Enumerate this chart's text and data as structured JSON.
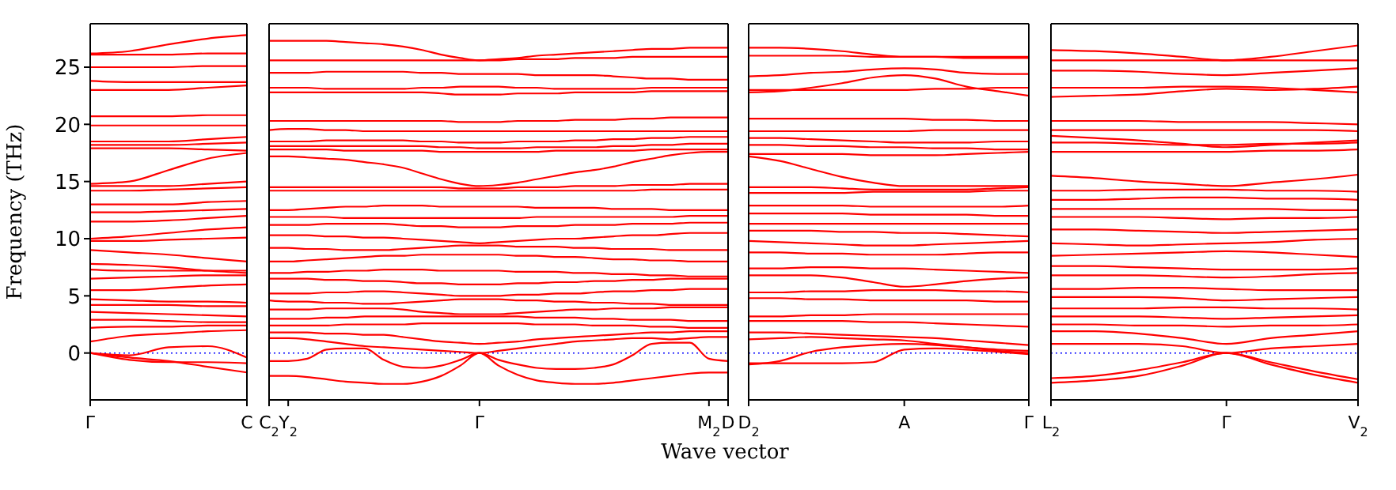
{
  "chart_data": [
    {
      "type": "line",
      "ylabel": "Frequency (THz)",
      "categories": [
        "Γ",
        null,
        null,
        null,
        "C"
      ],
      "ylim": [
        -4.1,
        28.8
      ],
      "yticks": [
        0,
        5,
        10,
        15,
        20,
        25
      ],
      "ref_lines": [
        {
          "axis": "y",
          "value": 0,
          "label": null,
          "color": "#0000ff",
          "line_style": "dotted"
        }
      ],
      "series": [
        {
          "color": "#ff0000",
          "values": [
            26.2,
            26.4,
            27.0,
            27.5,
            27.8
          ]
        },
        {
          "color": "#ff0000",
          "values": [
            26.1,
            26.1,
            26.1,
            26.2,
            26.2
          ]
        },
        {
          "color": "#ff0000",
          "values": [
            25.0,
            25.0,
            25.0,
            25.1,
            25.1
          ]
        },
        {
          "color": "#ff0000",
          "values": [
            23.8,
            23.7,
            23.7,
            23.7,
            23.7
          ]
        },
        {
          "color": "#ff0000",
          "values": [
            23.0,
            23.0,
            23.0,
            23.2,
            23.4
          ]
        },
        {
          "color": "#ff0000",
          "values": [
            20.7,
            20.7,
            20.7,
            20.8,
            20.8
          ]
        },
        {
          "color": "#ff0000",
          "values": [
            19.9,
            19.9,
            19.9,
            19.9,
            19.9
          ]
        },
        {
          "color": "#ff0000",
          "values": [
            18.5,
            18.5,
            18.5,
            18.7,
            18.9
          ]
        },
        {
          "color": "#ff0000",
          "values": [
            18.2,
            18.2,
            18.2,
            18.3,
            18.4
          ]
        },
        {
          "color": "#ff0000",
          "values": [
            17.9,
            17.9,
            17.9,
            17.8,
            17.7
          ]
        },
        {
          "color": "#ff0000",
          "values": [
            14.8,
            15.0,
            16.0,
            17.0,
            17.5
          ]
        },
        {
          "color": "#ff0000",
          "values": [
            14.6,
            14.6,
            14.6,
            14.8,
            15.0
          ]
        },
        {
          "color": "#ff0000",
          "values": [
            14.2,
            14.2,
            14.3,
            14.4,
            14.5
          ]
        },
        {
          "color": "#ff0000",
          "values": [
            13.0,
            13.0,
            13.0,
            13.2,
            13.3
          ]
        },
        {
          "color": "#ff0000",
          "values": [
            12.3,
            12.3,
            12.4,
            12.5,
            12.6
          ]
        },
        {
          "color": "#ff0000",
          "values": [
            11.5,
            11.5,
            11.6,
            11.8,
            12.0
          ]
        },
        {
          "color": "#ff0000",
          "values": [
            10.0,
            10.2,
            10.5,
            10.8,
            11.0
          ]
        },
        {
          "color": "#ff0000",
          "values": [
            9.8,
            9.8,
            9.9,
            10.0,
            10.1
          ]
        },
        {
          "color": "#ff0000",
          "values": [
            9.0,
            8.8,
            8.6,
            8.3,
            8.0
          ]
        },
        {
          "color": "#ff0000",
          "values": [
            7.8,
            7.7,
            7.5,
            7.2,
            7.0
          ]
        },
        {
          "color": "#ff0000",
          "values": [
            7.3,
            7.2,
            7.2,
            7.2,
            7.2
          ]
        },
        {
          "color": "#ff0000",
          "values": [
            6.5,
            6.6,
            6.7,
            6.8,
            6.8
          ]
        },
        {
          "color": "#ff0000",
          "values": [
            5.5,
            5.5,
            5.7,
            5.9,
            6.0
          ]
        },
        {
          "color": "#ff0000",
          "values": [
            4.7,
            4.6,
            4.5,
            4.5,
            4.4
          ]
        },
        {
          "color": "#ff0000",
          "values": [
            4.2,
            4.2,
            4.2,
            4.1,
            4.1
          ]
        },
        {
          "color": "#ff0000",
          "values": [
            3.6,
            3.5,
            3.4,
            3.3,
            3.2
          ]
        },
        {
          "color": "#ff0000",
          "values": [
            2.9,
            2.9,
            2.8,
            2.7,
            2.7
          ]
        },
        {
          "color": "#ff0000",
          "values": [
            2.2,
            2.3,
            2.3,
            2.4,
            2.4
          ]
        },
        {
          "color": "#ff0000",
          "values": [
            1.0,
            1.5,
            1.7,
            1.9,
            2.0
          ]
        },
        {
          "color": "#ff0000",
          "values": [
            0,
            -0.2,
            0.5,
            0.6,
            -0.4
          ]
        },
        {
          "color": "#ff0000",
          "values": [
            0,
            -0.6,
            -0.8,
            -0.8,
            -0.9
          ]
        },
        {
          "color": "#ff0000",
          "values": [
            0,
            -0.4,
            -0.7,
            -1.2,
            -1.7
          ]
        }
      ]
    },
    {
      "type": "line",
      "xlabel": "Wave vector",
      "tick_labels": "x",
      "categories": [
        "C$_{2}$",
        "Y$_{2}$",
        null,
        null,
        null,
        null,
        null,
        null,
        null,
        null,
        null,
        "Γ",
        null,
        null,
        null,
        null,
        null,
        null,
        null,
        null,
        null,
        null,
        null,
        "M$_{2}$",
        "D"
      ],
      "ylim": [
        -4.1,
        28.8
      ],
      "yticks": [
        0,
        5,
        10,
        15,
        20,
        25
      ],
      "ref_lines": [
        {
          "axis": "y",
          "value": 0,
          "label": null,
          "color": "#0000ff",
          "line_style": "dotted"
        }
      ],
      "series": [
        {
          "color": "#ff0000",
          "values": [
            27.3,
            27.3,
            27.3,
            27.3,
            27.2,
            27.1,
            27.0,
            26.8,
            26.5,
            26.1,
            25.8,
            25.6,
            25.7,
            25.8,
            26.0,
            26.1,
            26.2,
            26.3,
            26.4,
            26.5,
            26.6,
            26.6,
            26.7,
            26.7,
            26.7
          ]
        },
        {
          "color": "#ff0000",
          "values": [
            25.6,
            25.6,
            25.6,
            25.6,
            25.6,
            25.6,
            25.6,
            25.6,
            25.6,
            25.6,
            25.6,
            25.6,
            25.6,
            25.7,
            25.7,
            25.7,
            25.8,
            25.8,
            25.8,
            25.9,
            25.9,
            25.9,
            25.9,
            25.9,
            25.9
          ]
        },
        {
          "color": "#ff0000",
          "values": [
            24.5,
            24.5,
            24.5,
            24.6,
            24.6,
            24.6,
            24.6,
            24.6,
            24.5,
            24.5,
            24.4,
            24.4,
            24.4,
            24.4,
            24.3,
            24.3,
            24.3,
            24.3,
            24.2,
            24.1,
            24.0,
            24.0,
            23.9,
            23.9,
            23.9
          ]
        },
        {
          "color": "#ff0000",
          "values": [
            23.2,
            23.2,
            23.2,
            23.1,
            23.1,
            23.1,
            23.1,
            23.1,
            23.2,
            23.2,
            23.3,
            23.3,
            23.3,
            23.2,
            23.2,
            23.1,
            23.1,
            23.1,
            23.1,
            23.1,
            23.2,
            23.2,
            23.2,
            23.2,
            23.2
          ]
        },
        {
          "color": "#ff0000",
          "values": [
            22.8,
            22.8,
            22.8,
            22.8,
            22.8,
            22.8,
            22.8,
            22.8,
            22.8,
            22.7,
            22.6,
            22.6,
            22.6,
            22.7,
            22.7,
            22.7,
            22.8,
            22.8,
            22.8,
            22.8,
            22.9,
            22.9,
            22.9,
            22.9,
            22.9
          ]
        },
        {
          "color": "#ff0000",
          "values": [
            20.3,
            20.3,
            20.3,
            20.3,
            20.3,
            20.3,
            20.3,
            20.3,
            20.3,
            20.3,
            20.2,
            20.2,
            20.2,
            20.3,
            20.3,
            20.3,
            20.4,
            20.4,
            20.4,
            20.5,
            20.5,
            20.6,
            20.6,
            20.6,
            20.6
          ]
        },
        {
          "color": "#ff0000",
          "values": [
            19.5,
            19.6,
            19.6,
            19.5,
            19.5,
            19.4,
            19.4,
            19.4,
            19.4,
            19.4,
            19.4,
            19.4,
            19.4,
            19.4,
            19.4,
            19.4,
            19.4,
            19.4,
            19.4,
            19.4,
            19.4,
            19.4,
            19.4,
            19.4,
            19.4
          ]
        },
        {
          "color": "#ff0000",
          "values": [
            18.5,
            18.5,
            18.5,
            18.6,
            18.6,
            18.6,
            18.6,
            18.6,
            18.5,
            18.5,
            18.4,
            18.4,
            18.4,
            18.5,
            18.5,
            18.5,
            18.6,
            18.6,
            18.7,
            18.7,
            18.8,
            18.8,
            18.9,
            18.9,
            18.9
          ]
        },
        {
          "color": "#ff0000",
          "values": [
            18.1,
            18.1,
            18.1,
            18.1,
            18.1,
            18.1,
            18.1,
            18.1,
            18.1,
            18.0,
            18.0,
            17.9,
            17.9,
            17.9,
            18.0,
            18.0,
            18.0,
            18.0,
            18.1,
            18.1,
            18.2,
            18.2,
            18.3,
            18.3,
            18.3
          ]
        },
        {
          "color": "#ff0000",
          "values": [
            17.8,
            17.8,
            17.8,
            17.8,
            17.7,
            17.7,
            17.7,
            17.7,
            17.7,
            17.6,
            17.6,
            17.6,
            17.6,
            17.6,
            17.6,
            17.7,
            17.7,
            17.7,
            17.7,
            17.7,
            17.8,
            17.8,
            17.8,
            17.8,
            17.8
          ]
        },
        {
          "color": "#ff0000",
          "values": [
            17.2,
            17.2,
            17.1,
            17.0,
            16.9,
            16.7,
            16.5,
            16.2,
            15.7,
            15.2,
            14.8,
            14.6,
            14.7,
            14.9,
            15.2,
            15.5,
            15.8,
            16.0,
            16.3,
            16.7,
            17.0,
            17.3,
            17.5,
            17.6,
            17.6
          ]
        },
        {
          "color": "#ff0000",
          "values": [
            14.5,
            14.5,
            14.5,
            14.5,
            14.5,
            14.5,
            14.5,
            14.5,
            14.5,
            14.5,
            14.4,
            14.4,
            14.4,
            14.5,
            14.5,
            14.5,
            14.6,
            14.6,
            14.6,
            14.7,
            14.7,
            14.7,
            14.8,
            14.8,
            14.8
          ]
        },
        {
          "color": "#ff0000",
          "values": [
            14.2,
            14.2,
            14.2,
            14.2,
            14.2,
            14.2,
            14.2,
            14.2,
            14.2,
            14.2,
            14.2,
            14.2,
            14.2,
            14.2,
            14.2,
            14.2,
            14.2,
            14.2,
            14.2,
            14.2,
            14.3,
            14.3,
            14.3,
            14.3,
            14.3
          ]
        },
        {
          "color": "#ff0000",
          "values": [
            12.5,
            12.5,
            12.6,
            12.7,
            12.8,
            12.8,
            12.9,
            12.9,
            12.9,
            12.8,
            12.8,
            12.8,
            12.8,
            12.8,
            12.7,
            12.7,
            12.7,
            12.7,
            12.6,
            12.6,
            12.6,
            12.5,
            12.5,
            12.5,
            12.5
          ]
        },
        {
          "color": "#ff0000",
          "values": [
            11.9,
            11.9,
            11.9,
            11.9,
            11.8,
            11.8,
            11.8,
            11.8,
            11.8,
            11.8,
            11.8,
            11.8,
            11.8,
            11.8,
            11.9,
            11.9,
            11.9,
            11.9,
            11.9,
            11.9,
            11.9,
            11.9,
            12.0,
            12.0,
            12.0
          ]
        },
        {
          "color": "#ff0000",
          "values": [
            11.2,
            11.2,
            11.2,
            11.3,
            11.3,
            11.3,
            11.3,
            11.2,
            11.1,
            11.1,
            11.0,
            11.0,
            11.0,
            11.1,
            11.1,
            11.1,
            11.2,
            11.2,
            11.2,
            11.3,
            11.3,
            11.3,
            11.4,
            11.4,
            11.4
          ]
        },
        {
          "color": "#ff0000",
          "values": [
            10.3,
            10.3,
            10.3,
            10.2,
            10.2,
            10.1,
            10.1,
            10.0,
            9.9,
            9.8,
            9.7,
            9.6,
            9.7,
            9.8,
            9.9,
            10.0,
            10.0,
            10.1,
            10.2,
            10.3,
            10.3,
            10.4,
            10.5,
            10.5,
            10.5
          ]
        },
        {
          "color": "#ff0000",
          "values": [
            9.2,
            9.2,
            9.1,
            9.1,
            9.0,
            9.0,
            9.0,
            9.1,
            9.2,
            9.3,
            9.4,
            9.4,
            9.4,
            9.3,
            9.3,
            9.3,
            9.2,
            9.2,
            9.1,
            9.1,
            9.1,
            9.0,
            9.0,
            9.0,
            9.0
          ]
        },
        {
          "color": "#ff0000",
          "values": [
            8.0,
            8.0,
            8.1,
            8.2,
            8.3,
            8.4,
            8.5,
            8.5,
            8.6,
            8.6,
            8.6,
            8.6,
            8.6,
            8.5,
            8.5,
            8.4,
            8.4,
            8.3,
            8.2,
            8.2,
            8.1,
            8.1,
            8.0,
            8.0,
            8.0
          ]
        },
        {
          "color": "#ff0000",
          "values": [
            7.0,
            7.0,
            7.1,
            7.1,
            7.2,
            7.2,
            7.3,
            7.3,
            7.3,
            7.2,
            7.2,
            7.2,
            7.2,
            7.1,
            7.1,
            7.1,
            7.0,
            7.0,
            6.9,
            6.9,
            6.8,
            6.8,
            6.7,
            6.7,
            6.7
          ]
        },
        {
          "color": "#ff0000",
          "values": [
            6.5,
            6.5,
            6.5,
            6.4,
            6.4,
            6.3,
            6.3,
            6.2,
            6.1,
            6.1,
            6.0,
            6.0,
            6.0,
            6.1,
            6.1,
            6.2,
            6.2,
            6.3,
            6.3,
            6.4,
            6.4,
            6.5,
            6.5,
            6.5,
            6.5
          ]
        },
        {
          "color": "#ff0000",
          "values": [
            5.2,
            5.2,
            5.2,
            5.3,
            5.3,
            5.4,
            5.4,
            5.3,
            5.2,
            5.1,
            5.0,
            5.0,
            5.0,
            5.1,
            5.1,
            5.2,
            5.2,
            5.3,
            5.4,
            5.4,
            5.5,
            5.5,
            5.6,
            5.6,
            5.6
          ]
        },
        {
          "color": "#ff0000",
          "values": [
            4.6,
            4.5,
            4.5,
            4.4,
            4.4,
            4.3,
            4.3,
            4.4,
            4.5,
            4.6,
            4.7,
            4.7,
            4.7,
            4.6,
            4.6,
            4.5,
            4.5,
            4.4,
            4.4,
            4.3,
            4.3,
            4.2,
            4.2,
            4.2,
            4.2
          ]
        },
        {
          "color": "#ff0000",
          "values": [
            3.8,
            3.8,
            3.8,
            3.9,
            3.9,
            3.9,
            3.9,
            3.8,
            3.6,
            3.5,
            3.4,
            3.4,
            3.4,
            3.5,
            3.6,
            3.7,
            3.8,
            3.8,
            3.9,
            3.9,
            3.9,
            4.0,
            4.0,
            4.0,
            4.0
          ]
        },
        {
          "color": "#ff0000",
          "values": [
            3.0,
            3.0,
            3.0,
            3.1,
            3.1,
            3.2,
            3.2,
            3.2,
            3.2,
            3.2,
            3.2,
            3.2,
            3.2,
            3.2,
            3.1,
            3.1,
            3.1,
            3.0,
            3.0,
            2.9,
            2.9,
            2.9,
            2.8,
            2.8,
            2.8
          ]
        },
        {
          "color": "#ff0000",
          "values": [
            2.4,
            2.4,
            2.4,
            2.4,
            2.5,
            2.5,
            2.5,
            2.5,
            2.6,
            2.6,
            2.6,
            2.6,
            2.6,
            2.6,
            2.5,
            2.5,
            2.5,
            2.4,
            2.4,
            2.4,
            2.3,
            2.3,
            2.2,
            2.2,
            2.2
          ]
        },
        {
          "color": "#ff0000",
          "values": [
            1.8,
            1.8,
            1.8,
            1.7,
            1.7,
            1.6,
            1.6,
            1.4,
            1.2,
            1.0,
            0.9,
            0.8,
            0.9,
            1.0,
            1.2,
            1.3,
            1.4,
            1.5,
            1.6,
            1.7,
            1.8,
            1.8,
            1.9,
            1.9,
            1.9
          ]
        },
        {
          "color": "#ff0000",
          "values": [
            -0.7,
            -0.7,
            -0.5,
            0.3,
            0.4,
            0.4,
            -0.6,
            -1.2,
            -1.3,
            -1.1,
            -0.6,
            0,
            -0.6,
            -1.0,
            -1.3,
            -1.4,
            -1.4,
            -1.3,
            -1.0,
            -0.2,
            0.8,
            0.9,
            0.9,
            -0.5,
            -0.7
          ]
        },
        {
          "color": "#ff0000",
          "values": [
            -2.0,
            -2.0,
            -2.1,
            -2.3,
            -2.5,
            -2.6,
            -2.7,
            -2.7,
            -2.5,
            -2.0,
            -1.1,
            0,
            -1.1,
            -1.9,
            -2.4,
            -2.6,
            -2.7,
            -2.7,
            -2.6,
            -2.4,
            -2.2,
            -2.0,
            -1.8,
            -1.7,
            -1.7
          ]
        },
        {
          "color": "#ff0000",
          "values": [
            1.3,
            1.3,
            1.2,
            1.0,
            0.8,
            0.6,
            0.5,
            0.4,
            0.3,
            0.2,
            0.1,
            0,
            0.2,
            0.4,
            0.6,
            0.8,
            1.0,
            1.1,
            1.2,
            1.3,
            1.3,
            1.2,
            1.3,
            1.4,
            1.4
          ]
        }
      ]
    },
    {
      "type": "line",
      "tick_labels": "x",
      "categories": [
        "D$_{2}$",
        null,
        null,
        null,
        null,
        "A",
        null,
        null,
        null,
        "Γ"
      ],
      "ylim": [
        -4.1,
        28.8
      ],
      "yticks": [
        0,
        5,
        10,
        15,
        20,
        25
      ],
      "ref_lines": [
        {
          "axis": "y",
          "value": 0,
          "label": null,
          "color": "#0000ff",
          "line_style": "dotted"
        }
      ],
      "series": [
        {
          "color": "#ff0000",
          "values": [
            26.7,
            26.7,
            26.6,
            26.4,
            26.1,
            25.9,
            25.9,
            25.9,
            25.9,
            25.9
          ]
        },
        {
          "color": "#ff0000",
          "values": [
            26.0,
            26.0,
            26.0,
            26.0,
            25.9,
            25.9,
            25.9,
            25.8,
            25.8,
            25.8
          ]
        },
        {
          "color": "#ff0000",
          "values": [
            24.2,
            24.3,
            24.5,
            24.6,
            24.8,
            24.9,
            24.8,
            24.5,
            24.4,
            24.4
          ]
        },
        {
          "color": "#ff0000",
          "values": [
            22.8,
            22.9,
            23.2,
            23.6,
            24.1,
            24.3,
            24.0,
            23.3,
            22.9,
            22.5
          ]
        },
        {
          "color": "#ff0000",
          "values": [
            23.0,
            23.0,
            23.0,
            23.0,
            23.0,
            23.0,
            23.1,
            23.1,
            23.2,
            23.2
          ]
        },
        {
          "color": "#ff0000",
          "values": [
            20.5,
            20.5,
            20.5,
            20.5,
            20.5,
            20.5,
            20.4,
            20.4,
            20.3,
            20.3
          ]
        },
        {
          "color": "#ff0000",
          "values": [
            19.4,
            19.4,
            19.4,
            19.4,
            19.4,
            19.4,
            19.5,
            19.5,
            19.5,
            19.5
          ]
        },
        {
          "color": "#ff0000",
          "values": [
            18.8,
            18.8,
            18.7,
            18.6,
            18.5,
            18.4,
            18.4,
            18.4,
            18.5,
            18.5
          ]
        },
        {
          "color": "#ff0000",
          "values": [
            18.2,
            18.2,
            18.1,
            18.1,
            18.0,
            18.0,
            17.9,
            17.9,
            17.8,
            17.8
          ]
        },
        {
          "color": "#ff0000",
          "values": [
            17.4,
            17.4,
            17.4,
            17.4,
            17.3,
            17.3,
            17.3,
            17.4,
            17.5,
            17.6
          ]
        },
        {
          "color": "#ff0000",
          "values": [
            17.2,
            16.8,
            16.1,
            15.4,
            14.9,
            14.6,
            14.6,
            14.6,
            14.6,
            14.6
          ]
        },
        {
          "color": "#ff0000",
          "values": [
            14.5,
            14.5,
            14.5,
            14.4,
            14.3,
            14.3,
            14.3,
            14.3,
            14.4,
            14.5
          ]
        },
        {
          "color": "#ff0000",
          "values": [
            14.0,
            14.0,
            14.0,
            14.0,
            14.1,
            14.1,
            14.1,
            14.1,
            14.2,
            14.2
          ]
        },
        {
          "color": "#ff0000",
          "values": [
            12.9,
            12.9,
            12.9,
            12.9,
            12.8,
            12.8,
            12.8,
            12.8,
            12.8,
            12.9
          ]
        },
        {
          "color": "#ff0000",
          "values": [
            12.2,
            12.2,
            12.2,
            12.2,
            12.1,
            12.1,
            12.1,
            12.1,
            12.0,
            12.0
          ]
        },
        {
          "color": "#ff0000",
          "values": [
            11.3,
            11.3,
            11.3,
            11.3,
            11.3,
            11.3,
            11.3,
            11.3,
            11.3,
            11.3
          ]
        },
        {
          "color": "#ff0000",
          "values": [
            10.7,
            10.7,
            10.7,
            10.6,
            10.6,
            10.5,
            10.5,
            10.4,
            10.3,
            10.2
          ]
        },
        {
          "color": "#ff0000",
          "values": [
            9.8,
            9.7,
            9.6,
            9.5,
            9.4,
            9.4,
            9.5,
            9.6,
            9.7,
            9.8
          ]
        },
        {
          "color": "#ff0000",
          "values": [
            8.8,
            8.8,
            8.7,
            8.7,
            8.6,
            8.6,
            8.6,
            8.7,
            8.8,
            8.8
          ]
        },
        {
          "color": "#ff0000",
          "values": [
            7.4,
            7.4,
            7.5,
            7.5,
            7.4,
            7.4,
            7.3,
            7.2,
            7.1,
            7.0
          ]
        },
        {
          "color": "#ff0000",
          "values": [
            6.8,
            6.8,
            6.8,
            6.6,
            6.2,
            5.8,
            6.0,
            6.3,
            6.5,
            6.6
          ]
        },
        {
          "color": "#ff0000",
          "values": [
            5.3,
            5.3,
            5.4,
            5.4,
            5.5,
            5.5,
            5.5,
            5.4,
            5.4,
            5.3
          ]
        },
        {
          "color": "#ff0000",
          "values": [
            4.8,
            4.8,
            4.7,
            4.7,
            4.6,
            4.6,
            4.6,
            4.6,
            4.5,
            4.5
          ]
        },
        {
          "color": "#ff0000",
          "values": [
            3.2,
            3.2,
            3.3,
            3.3,
            3.4,
            3.4,
            3.4,
            3.4,
            3.4,
            3.4
          ]
        },
        {
          "color": "#ff0000",
          "values": [
            2.8,
            2.8,
            2.8,
            2.8,
            2.7,
            2.7,
            2.6,
            2.5,
            2.4,
            2.3
          ]
        },
        {
          "color": "#ff0000",
          "values": [
            1.8,
            1.8,
            1.7,
            1.6,
            1.5,
            1.4,
            1.3,
            1.1,
            0.9,
            0.7
          ]
        },
        {
          "color": "#ff0000",
          "values": [
            1.2,
            1.3,
            1.4,
            1.3,
            1.2,
            1.1,
            0.8,
            0.5,
            0.2,
            0
          ]
        },
        {
          "color": "#ff0000",
          "values": [
            -1.0,
            -0.7,
            0.1,
            0.5,
            0.7,
            0.8,
            0.7,
            0.5,
            0.3,
            0.2
          ]
        },
        {
          "color": "#ff0000",
          "values": [
            -0.9,
            -0.9,
            -0.9,
            -0.9,
            -0.8,
            0.3,
            0.4,
            0.3,
            0.1,
            -0.1
          ]
        }
      ]
    },
    {
      "type": "line",
      "tick_labels": "x",
      "categories": [
        "L$_{2}$",
        null,
        null,
        null,
        "Γ",
        null,
        null,
        "V$_{2}$"
      ],
      "ylim": [
        -4.1,
        28.8
      ],
      "yticks": [
        0,
        5,
        10,
        15,
        20,
        25
      ],
      "ref_lines": [
        {
          "axis": "y",
          "value": 0,
          "label": null,
          "color": "#0000ff",
          "line_style": "dotted"
        }
      ],
      "series": [
        {
          "color": "#ff0000",
          "values": [
            26.5,
            26.4,
            26.2,
            25.9,
            25.6,
            25.9,
            26.4,
            26.9
          ]
        },
        {
          "color": "#ff0000",
          "values": [
            25.6,
            25.6,
            25.6,
            25.6,
            25.6,
            25.6,
            25.6,
            25.6
          ]
        },
        {
          "color": "#ff0000",
          "values": [
            24.7,
            24.7,
            24.6,
            24.4,
            24.3,
            24.5,
            24.7,
            24.9
          ]
        },
        {
          "color": "#ff0000",
          "values": [
            23.2,
            23.2,
            23.2,
            23.3,
            23.3,
            23.2,
            23.0,
            22.8
          ]
        },
        {
          "color": "#ff0000",
          "values": [
            22.4,
            22.5,
            22.6,
            22.9,
            23.1,
            23.0,
            23.1,
            23.3
          ]
        },
        {
          "color": "#ff0000",
          "values": [
            20.3,
            20.3,
            20.3,
            20.2,
            20.2,
            20.2,
            20.1,
            20.0
          ]
        },
        {
          "color": "#ff0000",
          "values": [
            19.5,
            19.5,
            19.5,
            19.5,
            19.5,
            19.5,
            19.5,
            19.4
          ]
        },
        {
          "color": "#ff0000",
          "values": [
            19.0,
            18.8,
            18.6,
            18.3,
            18.0,
            18.2,
            18.4,
            18.6
          ]
        },
        {
          "color": "#ff0000",
          "values": [
            18.4,
            18.4,
            18.3,
            18.2,
            18.2,
            18.3,
            18.3,
            18.4
          ]
        },
        {
          "color": "#ff0000",
          "values": [
            17.6,
            17.6,
            17.6,
            17.6,
            17.6,
            17.7,
            17.7,
            17.8
          ]
        },
        {
          "color": "#ff0000",
          "values": [
            15.5,
            15.3,
            15.0,
            14.8,
            14.6,
            14.9,
            15.2,
            15.6
          ]
        },
        {
          "color": "#ff0000",
          "values": [
            14.2,
            14.2,
            14.3,
            14.3,
            14.3,
            14.2,
            14.2,
            14.1
          ]
        },
        {
          "color": "#ff0000",
          "values": [
            13.4,
            13.4,
            13.5,
            13.6,
            13.6,
            13.5,
            13.5,
            13.4
          ]
        },
        {
          "color": "#ff0000",
          "values": [
            12.6,
            12.6,
            12.6,
            12.6,
            12.6,
            12.6,
            12.5,
            12.5
          ]
        },
        {
          "color": "#ff0000",
          "values": [
            11.9,
            11.9,
            11.9,
            11.8,
            11.7,
            11.8,
            11.8,
            11.9
          ]
        },
        {
          "color": "#ff0000",
          "values": [
            10.8,
            10.8,
            10.7,
            10.6,
            10.5,
            10.6,
            10.7,
            10.8
          ]
        },
        {
          "color": "#ff0000",
          "values": [
            9.6,
            9.5,
            9.4,
            9.5,
            9.6,
            9.7,
            9.9,
            10.0
          ]
        },
        {
          "color": "#ff0000",
          "values": [
            8.5,
            8.6,
            8.7,
            8.8,
            8.9,
            8.8,
            8.6,
            8.4
          ]
        },
        {
          "color": "#ff0000",
          "values": [
            7.6,
            7.6,
            7.5,
            7.4,
            7.3,
            7.3,
            7.3,
            7.4
          ]
        },
        {
          "color": "#ff0000",
          "values": [
            6.8,
            6.8,
            6.8,
            6.7,
            6.6,
            6.7,
            6.9,
            7.0
          ]
        },
        {
          "color": "#ff0000",
          "values": [
            5.6,
            5.6,
            5.7,
            5.7,
            5.6,
            5.5,
            5.5,
            5.5
          ]
        },
        {
          "color": "#ff0000",
          "values": [
            4.9,
            4.9,
            4.9,
            4.8,
            4.6,
            4.7,
            4.8,
            4.9
          ]
        },
        {
          "color": "#ff0000",
          "values": [
            3.9,
            3.9,
            3.9,
            4.0,
            4.0,
            3.9,
            3.9,
            3.8
          ]
        },
        {
          "color": "#ff0000",
          "values": [
            3.2,
            3.2,
            3.2,
            3.1,
            3.0,
            3.1,
            3.2,
            3.3
          ]
        },
        {
          "color": "#ff0000",
          "values": [
            2.5,
            2.5,
            2.4,
            2.4,
            2.3,
            2.4,
            2.4,
            2.5
          ]
        },
        {
          "color": "#ff0000",
          "values": [
            1.9,
            1.9,
            1.7,
            1.3,
            0.8,
            1.3,
            1.6,
            1.9
          ]
        },
        {
          "color": "#ff0000",
          "values": [
            0.8,
            0.8,
            0.8,
            0.6,
            0,
            0.4,
            0.6,
            0.8
          ]
        },
        {
          "color": "#ff0000",
          "values": [
            -2.2,
            -2.0,
            -1.5,
            -0.8,
            0,
            -0.8,
            -1.6,
            -2.3
          ]
        },
        {
          "color": "#ff0000",
          "values": [
            -2.6,
            -2.4,
            -2.0,
            -1.1,
            0,
            -1.0,
            -1.9,
            -2.6
          ]
        }
      ]
    }
  ]
}
